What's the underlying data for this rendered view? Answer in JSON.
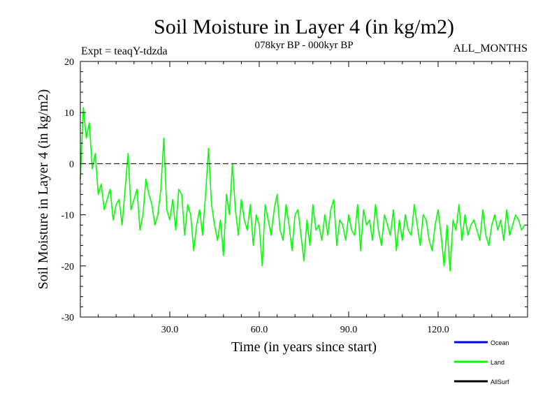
{
  "chart_data": {
    "type": "line",
    "title": "Soil Moisture in Layer 4 (in kg/m2)",
    "subtitle": "078kyr BP - 000kyr BP",
    "left_annotation": "Expt = teaqY-tdzda",
    "right_annotation": "ALL_MONTHS",
    "xlabel": "Time (in years since start)",
    "ylabel": "Soil Moisture in Layer 4 (in kg/m2)",
    "xlim": [
      0,
      150
    ],
    "ylim": [
      -30,
      20
    ],
    "x_ticks": [
      30,
      60,
      90,
      120
    ],
    "x_tick_labels": [
      "30.0",
      "60.0",
      "90.0",
      "120.0"
    ],
    "y_ticks": [
      20,
      10,
      0,
      -10,
      -20,
      -30
    ],
    "y_tick_labels": [
      "20",
      "10",
      "0",
      "-10",
      "-20",
      "-30"
    ],
    "reference_line_y": 0,
    "legend_position": "bottom-right",
    "legend": [
      {
        "name": "Ocean",
        "color": "#0000ff"
      },
      {
        "name": "Land",
        "color": "#00ff00"
      },
      {
        "name": "AllSurf",
        "color": "#000000"
      }
    ],
    "series": [
      {
        "name": "Land",
        "color": "#00ff00",
        "x_start": 0,
        "x_step": 1,
        "values": [
          -3,
          11,
          5,
          8,
          -1,
          2,
          -6,
          -4,
          -9,
          -7,
          -5,
          -11,
          -8,
          -7,
          -12,
          -5,
          2,
          -9,
          -7,
          -5,
          -13,
          -10,
          -3,
          -6,
          -8,
          -12,
          -10,
          -5,
          5,
          -9,
          -11,
          -7,
          -13,
          -5,
          -6,
          -14,
          -8,
          -10,
          -17,
          -12,
          -9,
          -14,
          -6,
          3,
          -8,
          -12,
          -15,
          -11,
          -18,
          -6,
          -10,
          0,
          -9,
          -14,
          -7,
          -11,
          -13,
          -8,
          -16,
          -10,
          -12,
          -20,
          -8,
          -11,
          -14,
          -9,
          -6,
          -13,
          -15,
          -8,
          -12,
          -17,
          -10,
          -9,
          -14,
          -19,
          -11,
          -16,
          -8,
          -13,
          -12,
          -15,
          -10,
          -14,
          -9,
          -7,
          -16,
          -11,
          -12,
          -15,
          -10,
          -13,
          -14,
          -8,
          -17,
          -9,
          -12,
          -11,
          -15,
          -8,
          -13,
          -16,
          -10,
          -12,
          -14,
          -9,
          -17,
          -11,
          -15,
          -10,
          -13,
          -14,
          -8,
          -12,
          -16,
          -10,
          -11,
          -15,
          -17,
          -12,
          -9,
          -14,
          -20,
          -12,
          -21,
          -11,
          -13,
          -8,
          -15,
          -10,
          -14,
          -12,
          -11,
          -13,
          -15,
          -9,
          -14,
          -16,
          -12,
          -10,
          -13,
          -11,
          -15,
          -9,
          -14,
          -12,
          -10,
          -11,
          -13,
          -12
        ]
      }
    ]
  }
}
